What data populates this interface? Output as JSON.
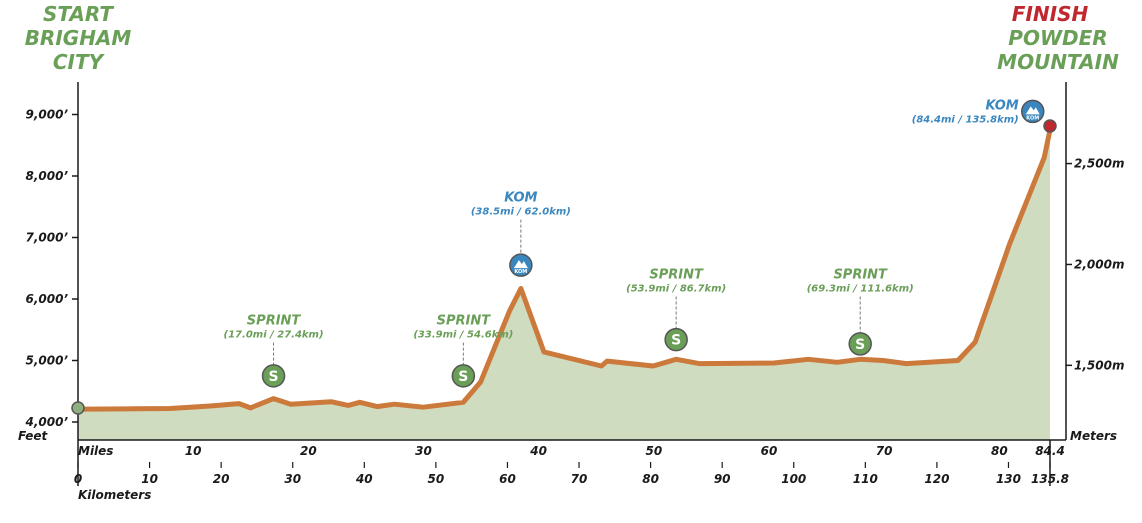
{
  "start": {
    "label": "START",
    "name_line1": "BRIGHAM",
    "name_line2": "CITY"
  },
  "finish": {
    "label": "FINISH",
    "name_line1": "POWDER",
    "name_line2": "MOUNTAIN"
  },
  "colors": {
    "green": "#6a9f58",
    "red": "#c0282f",
    "blue": "#3a87bf",
    "route": "#cc7a3c",
    "fill": "#cfdcc0"
  },
  "chart_data": {
    "type": "area",
    "xlabel_top": "Miles",
    "xlabel_bottom": "Kilometers",
    "ylabel_left": "Feet",
    "ylabel_right": "Meters",
    "xlim_km": [
      0,
      135.8
    ],
    "ylim_ft": [
      3700,
      9500
    ],
    "miles_ticks": [
      {
        "value": 10,
        "label": "10"
      },
      {
        "value": 20,
        "label": "20"
      },
      {
        "value": 30,
        "label": "30"
      },
      {
        "value": 40,
        "label": "40"
      },
      {
        "value": 50,
        "label": "50"
      },
      {
        "value": 60,
        "label": "60"
      },
      {
        "value": 70,
        "label": "70"
      },
      {
        "value": 80,
        "label": "80"
      },
      {
        "value": 84.4,
        "label": "84.4"
      }
    ],
    "km_ticks": [
      {
        "value": 0,
        "label": "0"
      },
      {
        "value": 10,
        "label": "10"
      },
      {
        "value": 20,
        "label": "20"
      },
      {
        "value": 30,
        "label": "30"
      },
      {
        "value": 40,
        "label": "40"
      },
      {
        "value": 50,
        "label": "50"
      },
      {
        "value": 60,
        "label": "60"
      },
      {
        "value": 70,
        "label": "70"
      },
      {
        "value": 80,
        "label": "80"
      },
      {
        "value": 90,
        "label": "90"
      },
      {
        "value": 100,
        "label": "100"
      },
      {
        "value": 110,
        "label": "110"
      },
      {
        "value": 120,
        "label": "120"
      },
      {
        "value": 130,
        "label": "130"
      },
      {
        "value": 135.8,
        "label": "135.8"
      }
    ],
    "feet_ticks": [
      {
        "value": 4000,
        "label": "4,000’"
      },
      {
        "value": 5000,
        "label": "5,000’"
      },
      {
        "value": 6000,
        "label": "6,000’"
      },
      {
        "value": 7000,
        "label": "7,000’"
      },
      {
        "value": 8000,
        "label": "8,000’"
      },
      {
        "value": 9000,
        "label": "9,000’"
      }
    ],
    "meter_ticks": [
      {
        "value": 1500,
        "label": "1,500m"
      },
      {
        "value": 2000,
        "label": "2,000m"
      },
      {
        "value": 2500,
        "label": "2,500m"
      }
    ],
    "profile": [
      [
        0,
        4250
      ],
      [
        1,
        4210
      ],
      [
        10,
        4215
      ],
      [
        16,
        4220
      ],
      [
        23,
        4260
      ],
      [
        28,
        4300
      ],
      [
        30,
        4230
      ],
      [
        34,
        4380
      ],
      [
        37,
        4290
      ],
      [
        44,
        4330
      ],
      [
        47,
        4270
      ],
      [
        49,
        4320
      ],
      [
        52,
        4250
      ],
      [
        55,
        4290
      ],
      [
        60,
        4240
      ],
      [
        67,
        4320
      ],
      [
        70,
        4650
      ],
      [
        75,
        5800
      ],
      [
        77,
        6170
      ],
      [
        81,
        5140
      ],
      [
        91,
        4910
      ],
      [
        92,
        4990
      ],
      [
        100,
        4910
      ],
      [
        104,
        5020
      ],
      [
        108,
        4950
      ],
      [
        121,
        4960
      ],
      [
        127,
        5020
      ],
      [
        132,
        4970
      ],
      [
        136,
        5020
      ],
      [
        140,
        5000
      ],
      [
        144,
        4950
      ],
      [
        153,
        5000
      ],
      [
        156,
        5300
      ],
      [
        162,
        6900
      ],
      [
        168,
        8300
      ],
      [
        169,
        8750
      ]
    ],
    "points": [
      {
        "type": "SPRINT",
        "x": 34,
        "y": 4380,
        "detail": "(17.0mi / 27.4km)",
        "label_y": 5550,
        "icon_y": 4750
      },
      {
        "type": "SPRINT",
        "x": 67,
        "y": 4320,
        "detail": "(33.9mi / 54.6km)",
        "label_y": 5550,
        "icon_y": 4750
      },
      {
        "type": "KOM",
        "x": 77,
        "y": 6170,
        "detail": "(38.5mi / 62.0km)",
        "label_y": 7550,
        "icon_y": 6550
      },
      {
        "type": "SPRINT",
        "x": 104,
        "y": 5020,
        "detail": "(53.9mi / 86.7km)",
        "label_y": 6300,
        "icon_y": 5340
      },
      {
        "type": "SPRINT",
        "x": 136,
        "y": 5020,
        "detail": "(69.3mi / 111.6km)",
        "label_y": 6300,
        "icon_y": 5270
      },
      {
        "type": "KOM",
        "x": 166,
        "y": 8900,
        "detail": "(84.4mi / 135.8km)",
        "label_y": 9050,
        "icon_y": 9050,
        "side": "left"
      }
    ]
  }
}
